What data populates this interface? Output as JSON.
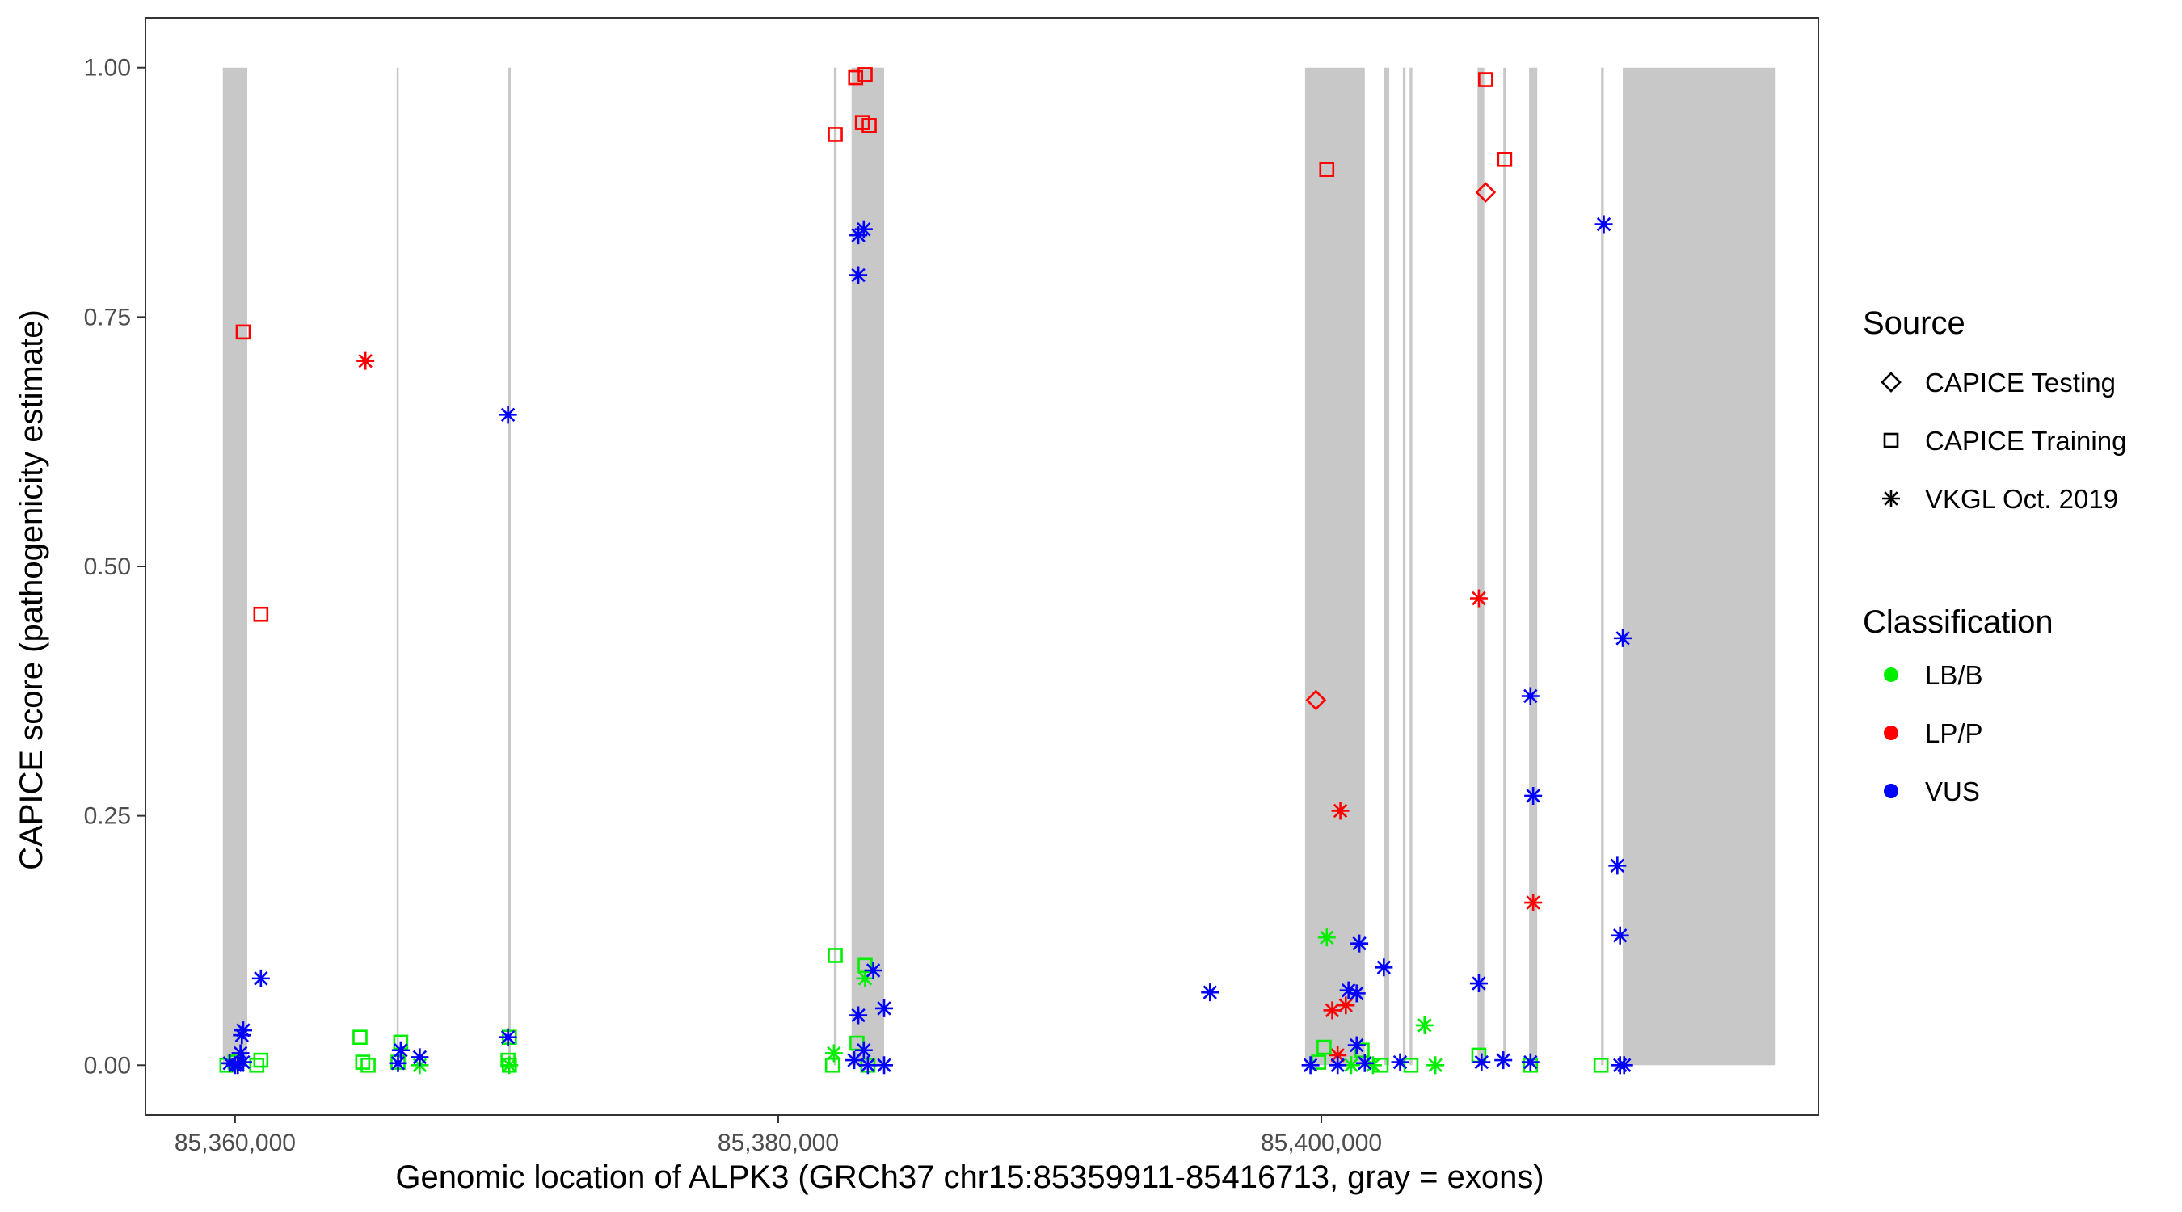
{
  "chart_data": {
    "type": "scatter",
    "xlabel": "Genomic location of ALPK3 (GRCh37 chr15:85359911-85416713, gray = exons)",
    "ylabel": "CAPICE score (pathogenicity estimate)",
    "xlim": [
      85356700,
      85418300
    ],
    "ylim": [
      -0.05,
      1.05
    ],
    "x_ticks": [
      85360000,
      85380000,
      85400000
    ],
    "x_tick_labels": [
      "85,360,000",
      "85,380,000",
      "85,400,000"
    ],
    "y_ticks": [
      0,
      0.25,
      0.5,
      0.75,
      1
    ],
    "y_tick_labels": [
      "0.00",
      "0.25",
      "0.50",
      "0.75",
      "1.00"
    ],
    "grid": false,
    "exons": [
      [
        85359550,
        85360450
      ],
      [
        85365950,
        85366000
      ],
      [
        85370050,
        85370150
      ],
      [
        85382050,
        85382150
      ],
      [
        85382700,
        85383900
      ],
      [
        85399400,
        85401600
      ],
      [
        85402300,
        85402500
      ],
      [
        85403000,
        85403100
      ],
      [
        85403250,
        85403350
      ],
      [
        85405750,
        85406000
      ],
      [
        85406700,
        85406800
      ],
      [
        85407650,
        85407950
      ],
      [
        85410300,
        85410400
      ],
      [
        85411100,
        85416700
      ]
    ],
    "legend": {
      "position": "right",
      "source_title": "Source",
      "source_entries": [
        {
          "label": "CAPICE Testing",
          "shape": "diamond"
        },
        {
          "label": "CAPICE Training",
          "shape": "square"
        },
        {
          "label": "VKGL Oct. 2019",
          "shape": "asterisk"
        }
      ],
      "class_title": "Classification",
      "class_entries": [
        {
          "label": "LB/B",
          "color": "#00ee00"
        },
        {
          "label": "LP/P",
          "color": "#ff0000"
        },
        {
          "label": "VUS",
          "color": "#0000ff"
        }
      ]
    },
    "colors": {
      "LB/B": "#00ee00",
      "LP/P": "#ff0000",
      "VUS": "#0000ff"
    },
    "series": [
      {
        "name": "LP/P CAPICE Training",
        "classification": "LP/P",
        "source": "CAPICE Training",
        "points": [
          [
            85360300,
            0.735
          ],
          [
            85360950,
            0.452
          ],
          [
            85382100,
            0.933
          ],
          [
            85382850,
            0.99
          ],
          [
            85383100,
            0.945
          ],
          [
            85383200,
            0.993
          ],
          [
            85383350,
            0.942
          ],
          [
            85400200,
            0.898
          ],
          [
            85406050,
            0.988
          ],
          [
            85406750,
            0.908
          ]
        ]
      },
      {
        "name": "LP/P CAPICE Testing",
        "classification": "LP/P",
        "source": "CAPICE Testing",
        "points": [
          [
            85399800,
            0.366
          ],
          [
            85406050,
            0.875
          ]
        ]
      },
      {
        "name": "LP/P VKGL Oct. 2019",
        "classification": "LP/P",
        "source": "VKGL Oct. 2019",
        "points": [
          [
            85364800,
            0.706
          ],
          [
            85405800,
            0.468
          ],
          [
            85400700,
            0.255
          ],
          [
            85407800,
            0.163
          ],
          [
            85400400,
            0.055
          ],
          [
            85400900,
            0.06
          ],
          [
            85400600,
            0.01
          ]
        ]
      },
      {
        "name": "LB/B CAPICE Training",
        "classification": "LB/B",
        "source": "CAPICE Training",
        "points": [
          [
            85359700,
            0.0
          ],
          [
            85360000,
            0.003
          ],
          [
            85360800,
            0.0
          ],
          [
            85360950,
            0.005
          ],
          [
            85364600,
            0.028
          ],
          [
            85364700,
            0.003
          ],
          [
            85364900,
            0.0
          ],
          [
            85366100,
            0.023
          ],
          [
            85366000,
            0.003
          ],
          [
            85370100,
            0.028
          ],
          [
            85370050,
            0.005
          ],
          [
            85370100,
            0.0
          ],
          [
            85382100,
            0.11
          ],
          [
            85382000,
            0.0
          ],
          [
            85382900,
            0.022
          ],
          [
            85383200,
            0.1
          ],
          [
            85383300,
            0.0
          ],
          [
            85400100,
            0.018
          ],
          [
            85399900,
            0.003
          ],
          [
            85401500,
            0.015
          ],
          [
            85402200,
            0.0
          ],
          [
            85403300,
            0.0
          ],
          [
            85405800,
            0.01
          ],
          [
            85407700,
            0.0
          ],
          [
            85410300,
            0.0
          ]
        ]
      },
      {
        "name": "LB/B VKGL Oct. 2019",
        "classification": "LB/B",
        "source": "VKGL Oct. 2019",
        "points": [
          [
            85400200,
            0.128
          ],
          [
            85383200,
            0.087
          ],
          [
            85403800,
            0.04
          ],
          [
            85404200,
            0.0
          ],
          [
            85382050,
            0.012
          ],
          [
            85366800,
            0.0
          ],
          [
            85370100,
            0.0
          ],
          [
            85401100,
            0.0
          ],
          [
            85401900,
            0.0
          ]
        ]
      },
      {
        "name": "VUS VKGL Oct. 2019",
        "classification": "VUS",
        "source": "VKGL Oct. 2019",
        "points": [
          [
            85360950,
            0.087
          ],
          [
            85360300,
            0.035
          ],
          [
            85360250,
            0.03
          ],
          [
            85360200,
            0.012
          ],
          [
            85359800,
            0.002
          ],
          [
            85360000,
            0.0
          ],
          [
            85360100,
            0.0
          ],
          [
            85360300,
            0.003
          ],
          [
            85366100,
            0.015
          ],
          [
            85366000,
            0.002
          ],
          [
            85366800,
            0.008
          ],
          [
            85370050,
            0.652
          ],
          [
            85370050,
            0.028
          ],
          [
            85382950,
            0.832
          ],
          [
            85383150,
            0.838
          ],
          [
            85382950,
            0.792
          ],
          [
            85383500,
            0.095
          ],
          [
            85383900,
            0.057
          ],
          [
            85382950,
            0.05
          ],
          [
            85383150,
            0.015
          ],
          [
            85382800,
            0.005
          ],
          [
            85383300,
            0.0
          ],
          [
            85383900,
            0.0
          ],
          [
            85395900,
            0.073
          ],
          [
            85399600,
            0.0
          ],
          [
            85400600,
            0.0
          ],
          [
            85401000,
            0.075
          ],
          [
            85401300,
            0.072
          ],
          [
            85401400,
            0.122
          ],
          [
            85401300,
            0.02
          ],
          [
            85401600,
            0.002
          ],
          [
            85402300,
            0.098
          ],
          [
            85402900,
            0.003
          ],
          [
            85405800,
            0.082
          ],
          [
            85405900,
            0.003
          ],
          [
            85406700,
            0.005
          ],
          [
            85407700,
            0.37
          ],
          [
            85407800,
            0.27
          ],
          [
            85407700,
            0.003
          ],
          [
            85410400,
            0.843
          ],
          [
            85411100,
            0.428
          ],
          [
            85410900,
            0.2
          ],
          [
            85411000,
            0.13
          ],
          [
            85411000,
            0.0
          ],
          [
            85411150,
            0.0
          ]
        ]
      }
    ]
  }
}
